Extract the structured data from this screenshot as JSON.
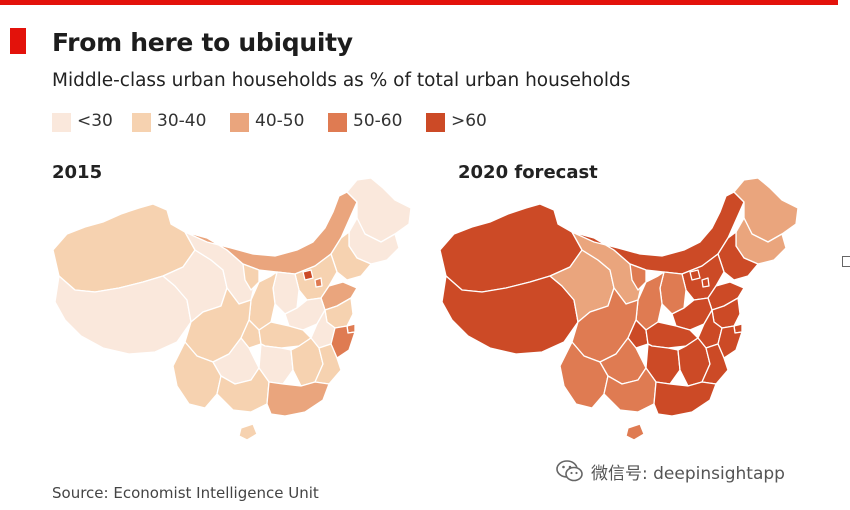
{
  "header": {
    "title": "From here to ubiquity",
    "subtitle": "Middle-class urban households as % of total urban households",
    "accent_color": "#e3120b"
  },
  "legend": [
    {
      "label": "<30",
      "color": "#fae8dc"
    },
    {
      "label": "30-40",
      "color": "#f6d2b0"
    },
    {
      "label": "40-50",
      "color": "#eaa57d"
    },
    {
      "label": "50-60",
      "color": "#df7b52"
    },
    {
      "label": ">60",
      "color": "#cc4a26"
    }
  ],
  "panels": [
    {
      "label": "2015"
    },
    {
      "label": "2020 forecast"
    }
  ],
  "source": "Source: Economist Intelligence Unit",
  "watermark": {
    "text": "微信号: deepinsightapp",
    "icon": "wechat-icon"
  }
}
